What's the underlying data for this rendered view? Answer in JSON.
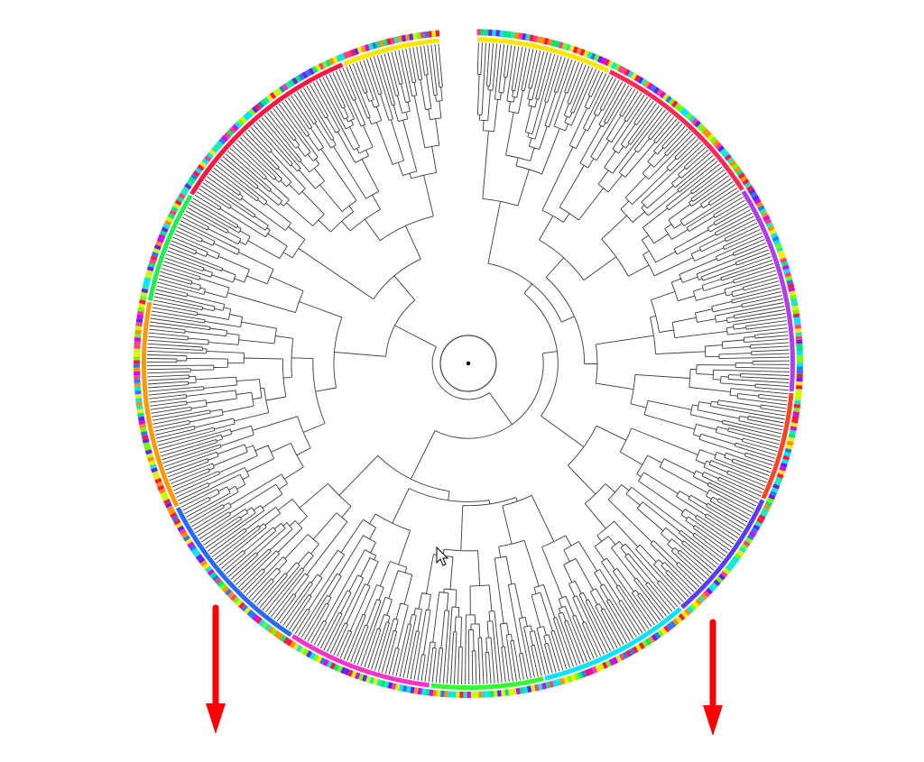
{
  "tree": {
    "layout": "circular",
    "root_marker": "root-node",
    "branch_color": "#3a3a3a",
    "has_gap_at_top": true,
    "clades": [
      {
        "color_outer": "#ffe600",
        "color_inner": "#ffe600"
      },
      {
        "color_outer": "#e91e63",
        "color_inner": "#ff2a55"
      },
      {
        "color_outer": "#9c27b0",
        "color_inner": "#b23cf0"
      },
      {
        "color_outer": "#ff5722",
        "color_inner": "#ff4422"
      },
      {
        "color_outer": "#3f51b5",
        "color_inner": "#5a3cff"
      },
      {
        "color_outer": "#00e5ff",
        "color_inner": "#00e5ff"
      },
      {
        "color_outer": "#76ff03",
        "color_inner": "#33ff33"
      },
      {
        "color_outer": "#ff00ff",
        "color_inner": "#ff33cc"
      },
      {
        "color_outer": "#2196f3",
        "color_inner": "#2a6bff"
      },
      {
        "color_outer": "#ff9800",
        "color_inner": "#ff9900"
      },
      {
        "color_outer": "#00e676",
        "color_inner": "#22ee55"
      },
      {
        "color_outer": "#ff1744",
        "color_inner": "#ff1744"
      }
    ],
    "ring_palette": [
      "#ff1744",
      "#ff9100",
      "#ffea00",
      "#76ff03",
      "#00e676",
      "#00e5ff",
      "#2979ff",
      "#651fff",
      "#d500f9",
      "#ff4081",
      "#c6ff00",
      "#1de9b6"
    ]
  },
  "annotations": {
    "arrows": [
      {
        "name": "left-down-arrow",
        "color": "#ff0000",
        "direction": "down"
      },
      {
        "name": "right-down-arrow",
        "color": "#ff0000",
        "direction": "down"
      }
    ]
  },
  "cursor": {
    "icon": "mouse-pointer-icon"
  }
}
